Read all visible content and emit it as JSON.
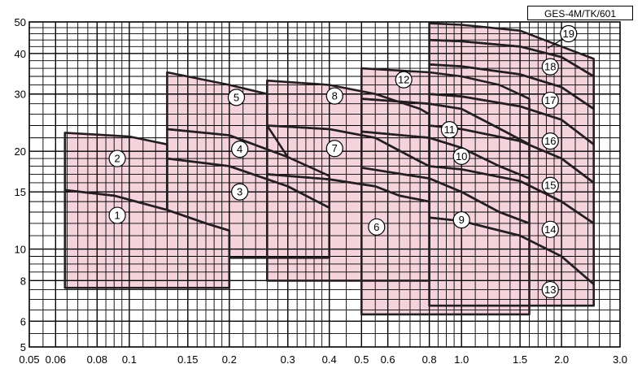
{
  "model_label": "GES-4M/TK/601",
  "colors": {
    "region_fill": "#f5d3dc",
    "region_edge": "#8a4450",
    "curve": "#241e20",
    "grid": "#000000",
    "background": "#ffffff"
  },
  "chart_data": {
    "type": "performance-chart",
    "title": "",
    "xlabel": "",
    "ylabel": "",
    "xscale": "log",
    "yscale": "log",
    "xlim": [
      0.05,
      3.0
    ],
    "ylim": [
      5,
      50
    ],
    "grid": true,
    "x_ticks": [
      {
        "v": 0.05,
        "t": "0.05"
      },
      {
        "v": 0.06,
        "t": "0.06"
      },
      {
        "v": 0.08,
        "t": "0.08"
      },
      {
        "v": 0.1,
        "t": "0.1"
      },
      {
        "v": 0.15,
        "t": "0.15"
      },
      {
        "v": 0.2,
        "t": "0.2"
      },
      {
        "v": 0.3,
        "t": "0.3"
      },
      {
        "v": 0.4,
        "t": "0.4"
      },
      {
        "v": 0.5,
        "t": "0.5"
      },
      {
        "v": 0.6,
        "t": "0.6"
      },
      {
        "v": 0.8,
        "t": "0.8"
      },
      {
        "v": 1.0,
        "t": "1.0"
      },
      {
        "v": 1.5,
        "t": "1.5"
      },
      {
        "v": 2.0,
        "t": "2.0"
      },
      {
        "v": 3.0,
        "t": "3.0"
      }
    ],
    "y_ticks": [
      {
        "v": 5,
        "t": "5"
      },
      {
        "v": 6,
        "t": "6"
      },
      {
        "v": 8,
        "t": "8"
      },
      {
        "v": 10,
        "t": "10"
      },
      {
        "v": 15,
        "t": "15"
      },
      {
        "v": 20,
        "t": "20"
      },
      {
        "v": 30,
        "t": "30"
      },
      {
        "v": 40,
        "t": "40"
      },
      {
        "v": 50,
        "t": "50"
      }
    ],
    "grid_x": [
      0.055,
      0.06,
      0.065,
      0.07,
      0.075,
      0.08,
      0.085,
      0.09,
      0.095,
      0.1,
      0.11,
      0.12,
      0.13,
      0.14,
      0.15,
      0.16,
      0.17,
      0.18,
      0.19,
      0.2,
      0.22,
      0.24,
      0.26,
      0.28,
      0.3,
      0.32,
      0.34,
      0.36,
      0.38,
      0.4,
      0.45,
      0.5,
      0.55,
      0.6,
      0.65,
      0.7,
      0.75,
      0.8,
      0.85,
      0.9,
      0.95,
      1.0,
      1.1,
      1.2,
      1.3,
      1.4,
      1.5,
      1.6,
      1.7,
      1.8,
      1.9,
      2.0,
      2.2,
      2.4,
      2.6,
      2.8
    ],
    "grid_y": [
      5.5,
      6,
      6.5,
      7,
      7.5,
      8,
      8.5,
      9,
      9.5,
      10,
      11,
      12,
      13,
      14,
      15,
      16,
      17,
      18,
      19,
      20,
      22,
      24,
      26,
      28,
      30,
      32,
      34,
      36,
      38,
      40,
      42,
      44,
      46,
      48
    ],
    "regions": [
      {
        "id": "1",
        "points": [
          [
            0.064,
            7.6
          ],
          [
            0.064,
            15.2
          ],
          [
            0.09,
            14.6
          ],
          [
            0.13,
            13.2
          ],
          [
            0.17,
            12.0
          ],
          [
            0.2,
            11.4
          ],
          [
            0.2,
            7.6
          ]
        ]
      },
      {
        "id": "2",
        "points": [
          [
            0.064,
            15.2
          ],
          [
            0.064,
            22.8
          ],
          [
            0.1,
            22.2
          ],
          [
            0.13,
            21.0
          ],
          [
            0.13,
            13.2
          ],
          [
            0.09,
            14.6
          ]
        ]
      },
      {
        "id": "3",
        "points": [
          [
            0.13,
            13.2
          ],
          [
            0.13,
            19.0
          ],
          [
            0.2,
            18.0
          ],
          [
            0.3,
            15.6
          ],
          [
            0.4,
            13.4
          ],
          [
            0.4,
            9.4
          ],
          [
            0.2,
            9.4
          ],
          [
            0.2,
            11.4
          ],
          [
            0.17,
            12.0
          ]
        ]
      },
      {
        "id": "4",
        "points": [
          [
            0.13,
            19.0
          ],
          [
            0.13,
            23.4
          ],
          [
            0.2,
            22.4
          ],
          [
            0.3,
            19.2
          ],
          [
            0.4,
            16.8
          ],
          [
            0.4,
            13.4
          ],
          [
            0.3,
            15.6
          ],
          [
            0.2,
            18.0
          ]
        ]
      },
      {
        "id": "5",
        "points": [
          [
            0.13,
            23.4
          ],
          [
            0.13,
            35.0
          ],
          [
            0.2,
            32.0
          ],
          [
            0.26,
            30.0
          ],
          [
            0.26,
            24.0
          ],
          [
            0.3,
            19.2
          ],
          [
            0.2,
            22.4
          ]
        ]
      },
      {
        "id": "6",
        "points": [
          [
            0.26,
            8.0
          ],
          [
            0.26,
            17.0
          ],
          [
            0.4,
            16.4
          ],
          [
            0.55,
            15.6
          ],
          [
            0.65,
            14.6
          ],
          [
            0.8,
            14.0
          ],
          [
            0.8,
            8.0
          ]
        ]
      },
      {
        "id": "7",
        "points": [
          [
            0.26,
            17.0
          ],
          [
            0.26,
            24.0
          ],
          [
            0.4,
            23.4
          ],
          [
            0.55,
            22.0
          ],
          [
            0.75,
            18.6
          ],
          [
            0.8,
            18.0
          ],
          [
            0.8,
            14.0
          ],
          [
            0.65,
            14.6
          ],
          [
            0.55,
            15.6
          ],
          [
            0.4,
            16.4
          ]
        ]
      },
      {
        "id": "8",
        "points": [
          [
            0.26,
            24.0
          ],
          [
            0.26,
            33.0
          ],
          [
            0.4,
            32.0
          ],
          [
            0.55,
            30.0
          ],
          [
            0.75,
            27.0
          ],
          [
            0.8,
            26.0
          ],
          [
            0.8,
            18.0
          ],
          [
            0.75,
            18.6
          ],
          [
            0.55,
            22.0
          ],
          [
            0.4,
            23.4
          ]
        ]
      },
      {
        "id": "9",
        "points": [
          [
            0.5,
            6.3
          ],
          [
            0.5,
            17.8
          ],
          [
            0.8,
            16.5
          ],
          [
            1.0,
            15.0
          ],
          [
            1.3,
            13.0
          ],
          [
            1.6,
            12.0
          ],
          [
            1.6,
            6.3
          ]
        ]
      },
      {
        "id": "10",
        "points": [
          [
            0.5,
            17.8
          ],
          [
            0.5,
            23.0
          ],
          [
            0.8,
            22.0
          ],
          [
            1.0,
            20.5
          ],
          [
            1.3,
            18.0
          ],
          [
            1.6,
            16.5
          ],
          [
            1.6,
            12.0
          ],
          [
            1.3,
            13.0
          ],
          [
            1.0,
            15.0
          ],
          [
            0.8,
            16.5
          ]
        ]
      },
      {
        "id": "11",
        "points": [
          [
            0.5,
            23.0
          ],
          [
            0.5,
            29.0
          ],
          [
            0.8,
            28.0
          ],
          [
            1.0,
            27.0
          ],
          [
            1.3,
            23.5
          ],
          [
            1.6,
            21.0
          ],
          [
            1.6,
            16.5
          ],
          [
            1.3,
            18.0
          ],
          [
            1.0,
            20.5
          ],
          [
            0.8,
            22.0
          ]
        ]
      },
      {
        "id": "12",
        "points": [
          [
            0.5,
            29.0
          ],
          [
            0.5,
            36.0
          ],
          [
            0.8,
            35.0
          ],
          [
            1.0,
            34.0
          ],
          [
            1.3,
            32.0
          ],
          [
            1.6,
            29.0
          ],
          [
            1.6,
            21.0
          ],
          [
            1.3,
            23.5
          ],
          [
            1.0,
            27.0
          ],
          [
            0.8,
            28.0
          ]
        ]
      },
      {
        "id": "13",
        "points": [
          [
            0.8,
            6.7
          ],
          [
            0.8,
            12.5
          ],
          [
            1.0,
            12.2
          ],
          [
            1.5,
            11.0
          ],
          [
            2.0,
            9.5
          ],
          [
            2.5,
            7.8
          ],
          [
            2.5,
            6.7
          ]
        ]
      },
      {
        "id": "14",
        "points": [
          [
            0.8,
            12.5
          ],
          [
            0.8,
            18.0
          ],
          [
            1.0,
            17.6
          ],
          [
            1.5,
            16.2
          ],
          [
            2.0,
            14.0
          ],
          [
            2.5,
            12.0
          ],
          [
            2.5,
            7.8
          ],
          [
            2.0,
            9.5
          ],
          [
            1.5,
            11.0
          ],
          [
            1.0,
            12.2
          ]
        ]
      },
      {
        "id": "15",
        "points": [
          [
            0.8,
            18.0
          ],
          [
            0.8,
            24.0
          ],
          [
            1.0,
            23.4
          ],
          [
            1.5,
            21.5
          ],
          [
            2.0,
            19.0
          ],
          [
            2.5,
            16.0
          ],
          [
            2.5,
            12.0
          ],
          [
            2.0,
            14.0
          ],
          [
            1.5,
            16.2
          ],
          [
            1.0,
            17.6
          ]
        ]
      },
      {
        "id": "16",
        "points": [
          [
            0.8,
            24.0
          ],
          [
            0.8,
            30.0
          ],
          [
            1.0,
            29.5
          ],
          [
            1.5,
            27.5
          ],
          [
            2.0,
            25.0
          ],
          [
            2.5,
            21.0
          ],
          [
            2.5,
            16.0
          ],
          [
            2.0,
            19.0
          ],
          [
            1.5,
            21.5
          ],
          [
            1.0,
            23.4
          ]
        ]
      },
      {
        "id": "17",
        "points": [
          [
            0.8,
            30.0
          ],
          [
            0.8,
            37.0
          ],
          [
            1.0,
            36.5
          ],
          [
            1.5,
            34.5
          ],
          [
            2.0,
            31.5
          ],
          [
            2.5,
            27.0
          ],
          [
            2.5,
            21.0
          ],
          [
            2.0,
            25.0
          ],
          [
            1.5,
            27.5
          ],
          [
            1.0,
            29.5
          ]
        ]
      },
      {
        "id": "18",
        "points": [
          [
            0.8,
            37.0
          ],
          [
            0.8,
            44.0
          ],
          [
            1.0,
            43.6
          ],
          [
            1.5,
            42.0
          ],
          [
            2.0,
            39.0
          ],
          [
            2.5,
            34.0
          ],
          [
            2.5,
            27.0
          ],
          [
            2.0,
            31.5
          ],
          [
            1.5,
            34.5
          ],
          [
            1.0,
            36.5
          ]
        ]
      },
      {
        "id": "19",
        "points": [
          [
            0.8,
            44.0
          ],
          [
            0.8,
            49.5
          ],
          [
            1.0,
            49.0
          ],
          [
            1.5,
            47.0
          ],
          [
            2.0,
            42.0
          ],
          [
            2.5,
            38.5
          ],
          [
            2.5,
            34.0
          ],
          [
            2.0,
            39.0
          ],
          [
            1.5,
            42.0
          ],
          [
            1.0,
            43.6
          ]
        ]
      }
    ],
    "labels": [
      {
        "text": "1",
        "x": 0.092,
        "y": 12.7
      },
      {
        "text": "2",
        "x": 0.092,
        "y": 19.0
      },
      {
        "text": "3",
        "x": 0.215,
        "y": 15.0
      },
      {
        "text": "4",
        "x": 0.215,
        "y": 20.3
      },
      {
        "text": "5",
        "x": 0.21,
        "y": 29.3
      },
      {
        "text": "6",
        "x": 0.555,
        "y": 11.7
      },
      {
        "text": "7",
        "x": 0.415,
        "y": 20.4
      },
      {
        "text": "8",
        "x": 0.415,
        "y": 29.6
      },
      {
        "text": "9",
        "x": 1.0,
        "y": 12.3
      },
      {
        "text": "10",
        "x": 1.0,
        "y": 19.3
      },
      {
        "text": "11",
        "x": 0.92,
        "y": 23.3
      },
      {
        "text": "12",
        "x": 0.67,
        "y": 33.2
      },
      {
        "text": "13",
        "x": 1.85,
        "y": 7.5
      },
      {
        "text": "14",
        "x": 1.85,
        "y": 11.5
      },
      {
        "text": "15",
        "x": 1.85,
        "y": 15.7
      },
      {
        "text": "16",
        "x": 1.85,
        "y": 21.5
      },
      {
        "text": "17",
        "x": 1.85,
        "y": 28.7
      },
      {
        "text": "18",
        "x": 1.85,
        "y": 36.4
      },
      {
        "text": "19",
        "x": 2.1,
        "y": 46.0
      }
    ]
  }
}
